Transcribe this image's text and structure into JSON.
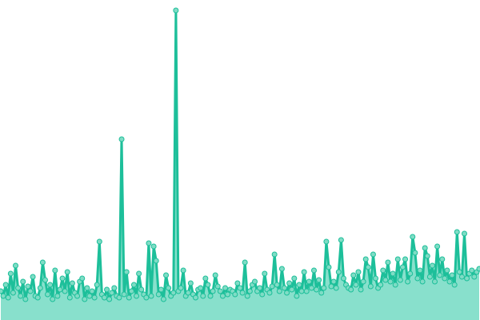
{
  "chart_data": {
    "type": "area",
    "title": "",
    "xlabel": "",
    "ylabel": "",
    "grid": false,
    "ylim": [
      0,
      400
    ],
    "colors": {
      "line": "#1dbf9a",
      "fill": "#88e0cc",
      "marker_fill": "#7fdcc5",
      "marker_stroke": "#1dbf9a"
    },
    "series": [
      {
        "values": [
          36,
          30,
          44,
          28,
          58,
          34,
          68,
          40,
          30,
          48,
          26,
          42,
          36,
          54,
          30,
          28,
          40,
          72,
          50,
          32,
          44,
          26,
          62,
          30,
          38,
          52,
          36,
          60,
          28,
          46,
          34,
          30,
          48,
          52,
          26,
          40,
          30,
          36,
          28,
          44,
          98,
          32,
          28,
          38,
          26,
          34,
          40,
          30,
          28,
          226,
          32,
          60,
          28,
          36,
          44,
          30,
          58,
          38,
          32,
          28,
          96,
          30,
          92,
          74,
          32,
          38,
          26,
          56,
          40,
          30,
          34,
          387,
          36,
          40,
          62,
          30,
          34,
          46,
          32,
          28,
          38,
          40,
          30,
          52,
          44,
          30,
          36,
          56,
          42,
          36,
          30,
          40,
          32,
          38,
          36,
          32,
          46,
          40,
          34,
          72,
          30,
          36,
          44,
          48,
          36,
          40,
          32,
          58,
          38,
          34,
          42,
          82,
          44,
          36,
          64,
          40,
          34,
          46,
          38,
          52,
          30,
          44,
          36,
          60,
          36,
          48,
          40,
          62,
          38,
          50,
          34,
          40,
          98,
          66,
          42,
          48,
          40,
          60,
          100,
          52,
          44,
          40,
          38,
          56,
          44,
          60,
          38,
          48,
          76,
          66,
          42,
          82,
          52,
          40,
          44,
          62,
          50,
          72,
          48,
          58,
          44,
          76,
          50,
          66,
          76,
          48,
          58,
          104,
          84,
          52,
          62,
          48,
          90,
          80,
          54,
          68,
          48,
          92,
          56,
          76,
          52,
          62,
          48,
          56,
          44,
          110,
          60,
          54,
          108,
          52,
          58,
          62,
          54,
          60,
          64
        ]
      }
    ]
  }
}
